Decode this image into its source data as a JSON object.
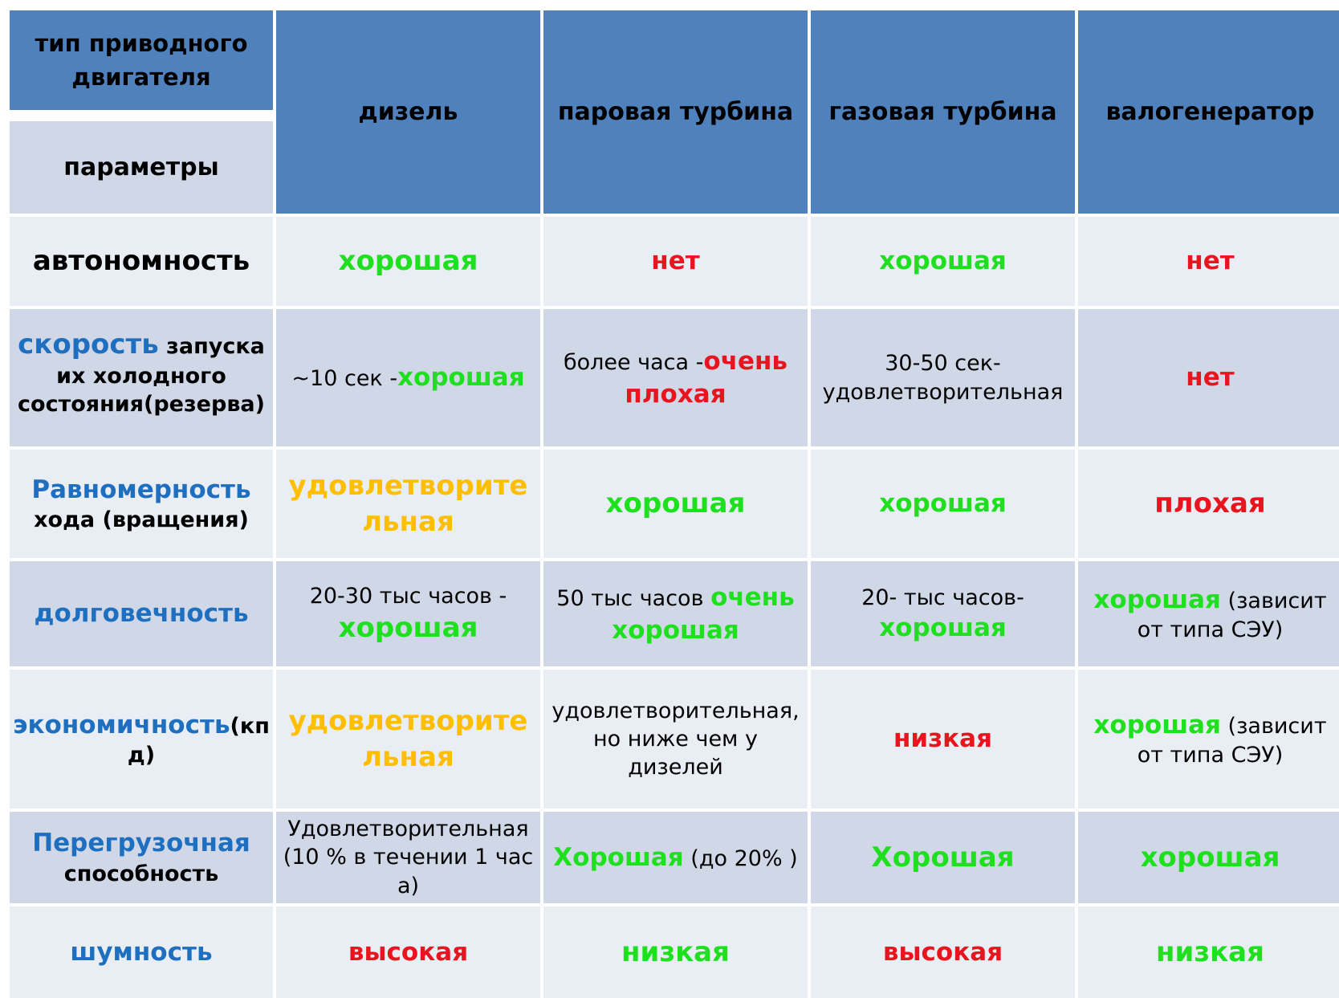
{
  "header": {
    "corner_top": "тип приводного двигателя",
    "corner_bottom": "параметры",
    "columns": [
      "дизель",
      "паровая турбина",
      "газовая турбина",
      "валогенератор"
    ]
  },
  "rows": {
    "autonomy": {
      "label": "автономность",
      "diesel": "хорошая",
      "steam": "нет",
      "gas": "хорошая",
      "shaft": "нет"
    },
    "start_speed": {
      "label_main": "скорость",
      "label_rest": " запуска их холодного состояния(резерва)",
      "diesel_prefix": "~10 сек -",
      "diesel_rating": "хорошая",
      "steam_prefix": "более часа -",
      "steam_rating": "очень плохая",
      "gas": "30-50 сек- удовлетворительная",
      "shaft": "нет"
    },
    "uniformity": {
      "label_main": "Равномерность",
      "label_rest": "хода (вращения)",
      "diesel": "удовлетворительная",
      "steam": "хорошая",
      "gas": "хорошая",
      "shaft": "плохая"
    },
    "durability": {
      "label": "долговечность",
      "diesel_prefix": "20-30 тыс часов -",
      "diesel_rating": "хорошая",
      "steam_prefix": "50 тыс часов ",
      "steam_rating": "очень хорошая",
      "gas_prefix": "20- тыс часов-",
      "gas_rating": "хорошая",
      "shaft_rating": "хорошая",
      "shaft_note": " (зависит от типа СЭУ)"
    },
    "economy": {
      "label_main": "экономичность",
      "label_rest": "(кпд)",
      "diesel": "удовлетворительная",
      "steam": "удовлетворительная, но ниже чем у дизелей",
      "gas": "низкая",
      "shaft_rating": "хорошая",
      "shaft_note": " (зависит от типа СЭУ)"
    },
    "overload": {
      "label_main": "Перегрузочная",
      "label_rest": "способность",
      "diesel": "Удовлетворительная(10 % в течении  1 часа)",
      "steam_rating": "Хорошая",
      "steam_note": " (до 20% )",
      "gas": "Хорошая",
      "shaft": "хорошая"
    },
    "noise": {
      "label": "шумность",
      "diesel": "высокая",
      "steam": "низкая",
      "gas": "высокая",
      "shaft": "низкая"
    }
  },
  "colors": {
    "header_blue": "#4f81bd",
    "row_light": "#e9edf4",
    "row_dark": "#d0d8e8",
    "good_green": "#1ee01e",
    "bad_red": "#e8141e",
    "ok_orange": "#ffbf00",
    "label_blue": "#1f6fc0"
  }
}
